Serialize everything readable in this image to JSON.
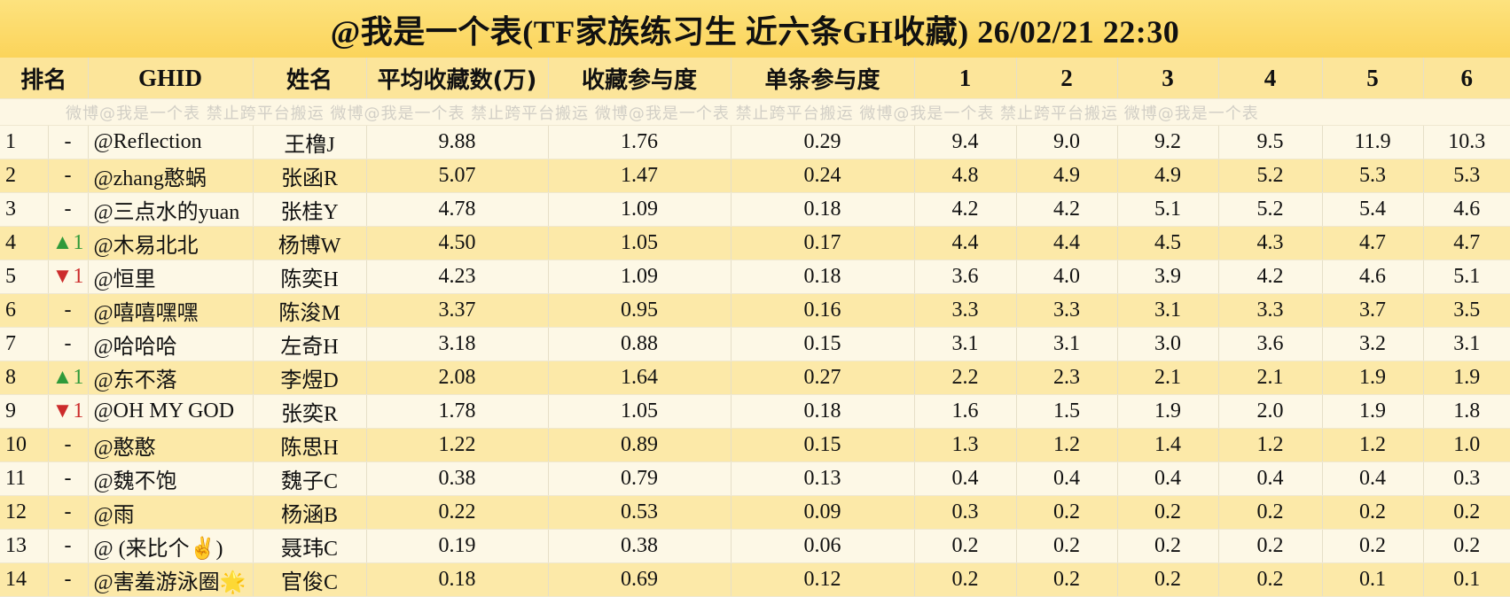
{
  "title": "@我是一个表(TF家族练习生 近六条GH收藏)  26/02/21 22:30",
  "watermark": "微博@我是一个表   禁止跨平台搬运   微博@我是一个表   禁止跨平台搬运   微博@我是一个表   禁止跨平台搬运   微博@我是一个表   禁止跨平台搬运   微博@我是一个表",
  "columns": [
    "排名",
    "GHID",
    "姓名",
    "平均收藏数(万)",
    "收藏参与度",
    "单条参与度",
    "1",
    "2",
    "3",
    "4",
    "5",
    "6"
  ],
  "colors": {
    "title_bg": "#fbd45a",
    "header_bg": "#fce59a",
    "row_light": "#fdf8e6",
    "row_dark": "#fce9a8",
    "up": "#2f9a3a",
    "down": "#cc2b2b"
  },
  "rows": [
    {
      "rank": "1",
      "change": "-",
      "dir": "",
      "ghid": "@Reflection",
      "name": "王橹J",
      "avg": "9.88",
      "part": "1.76",
      "single": "0.29",
      "v": [
        "9.4",
        "9.0",
        "9.2",
        "9.5",
        "11.9",
        "10.3"
      ]
    },
    {
      "rank": "2",
      "change": "-",
      "dir": "",
      "ghid": "@zhang憨蜗",
      "name": "张函R",
      "avg": "5.07",
      "part": "1.47",
      "single": "0.24",
      "v": [
        "4.8",
        "4.9",
        "4.9",
        "5.2",
        "5.3",
        "5.3"
      ]
    },
    {
      "rank": "3",
      "change": "-",
      "dir": "",
      "ghid": "@三点水的yuan",
      "name": "张桂Y",
      "avg": "4.78",
      "part": "1.09",
      "single": "0.18",
      "v": [
        "4.2",
        "4.2",
        "5.1",
        "5.2",
        "5.4",
        "4.6"
      ]
    },
    {
      "rank": "4",
      "change": "▲1",
      "dir": "up",
      "ghid": "@木易北北",
      "name": "杨博W",
      "avg": "4.50",
      "part": "1.05",
      "single": "0.17",
      "v": [
        "4.4",
        "4.4",
        "4.5",
        "4.3",
        "4.7",
        "4.7"
      ]
    },
    {
      "rank": "5",
      "change": "▼1",
      "dir": "down",
      "ghid": "@恒里",
      "name": "陈奕H",
      "avg": "4.23",
      "part": "1.09",
      "single": "0.18",
      "v": [
        "3.6",
        "4.0",
        "3.9",
        "4.2",
        "4.6",
        "5.1"
      ]
    },
    {
      "rank": "6",
      "change": "-",
      "dir": "",
      "ghid": "@嘻嘻嘿嘿",
      "name": "陈浚M",
      "avg": "3.37",
      "part": "0.95",
      "single": "0.16",
      "v": [
        "3.3",
        "3.3",
        "3.1",
        "3.3",
        "3.7",
        "3.5"
      ]
    },
    {
      "rank": "7",
      "change": "-",
      "dir": "",
      "ghid": "@哈哈哈",
      "name": "左奇H",
      "avg": "3.18",
      "part": "0.88",
      "single": "0.15",
      "v": [
        "3.1",
        "3.1",
        "3.0",
        "3.6",
        "3.2",
        "3.1"
      ]
    },
    {
      "rank": "8",
      "change": "▲1",
      "dir": "up",
      "ghid": "@东不落",
      "name": "李煜D",
      "avg": "2.08",
      "part": "1.64",
      "single": "0.27",
      "v": [
        "2.2",
        "2.3",
        "2.1",
        "2.1",
        "1.9",
        "1.9"
      ]
    },
    {
      "rank": "9",
      "change": "▼1",
      "dir": "down",
      "ghid": "@OH MY GOD",
      "name": "张奕R",
      "avg": "1.78",
      "part": "1.05",
      "single": "0.18",
      "v": [
        "1.6",
        "1.5",
        "1.9",
        "2.0",
        "1.9",
        "1.8"
      ]
    },
    {
      "rank": "10",
      "change": "-",
      "dir": "",
      "ghid": "@憨憨",
      "name": "陈思H",
      "avg": "1.22",
      "part": "0.89",
      "single": "0.15",
      "v": [
        "1.3",
        "1.2",
        "1.4",
        "1.2",
        "1.2",
        "1.0"
      ]
    },
    {
      "rank": "11",
      "change": "-",
      "dir": "",
      "ghid": "@魏不饱",
      "name": "魏子C",
      "avg": "0.38",
      "part": "0.79",
      "single": "0.13",
      "v": [
        "0.4",
        "0.4",
        "0.4",
        "0.4",
        "0.4",
        "0.3"
      ]
    },
    {
      "rank": "12",
      "change": "-",
      "dir": "",
      "ghid": "@雨",
      "name": "杨涵B",
      "avg": "0.22",
      "part": "0.53",
      "single": "0.09",
      "v": [
        "0.3",
        "0.2",
        "0.2",
        "0.2",
        "0.2",
        "0.2"
      ]
    },
    {
      "rank": "13",
      "change": "-",
      "dir": "",
      "ghid": "@ (来比个✌️)",
      "name": "聂玮C",
      "avg": "0.19",
      "part": "0.38",
      "single": "0.06",
      "v": [
        "0.2",
        "0.2",
        "0.2",
        "0.2",
        "0.2",
        "0.2"
      ]
    },
    {
      "rank": "14",
      "change": "-",
      "dir": "",
      "ghid": "@害羞游泳圈🌟",
      "name": "官俊C",
      "avg": "0.18",
      "part": "0.69",
      "single": "0.12",
      "v": [
        "0.2",
        "0.2",
        "0.2",
        "0.2",
        "0.1",
        "0.1"
      ]
    }
  ]
}
